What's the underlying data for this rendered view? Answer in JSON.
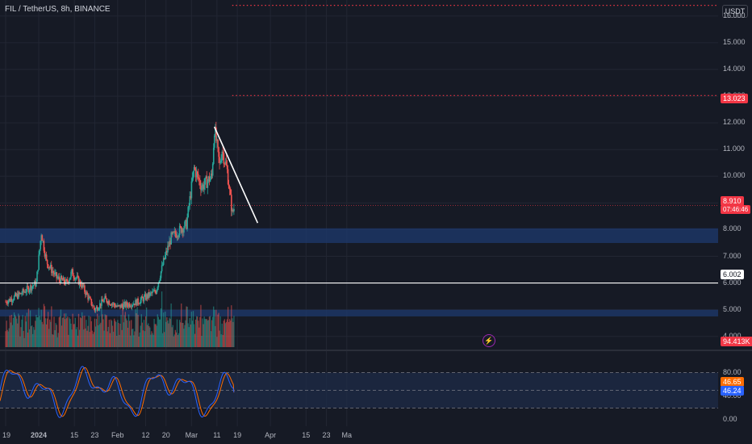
{
  "header": {
    "title": "FIL / TetherUS, 8h, BINANCE",
    "currency_button": "USDT"
  },
  "price_axis": {
    "ticks": [
      "16.000",
      "15.000",
      "14.000",
      "13.000",
      "12.000",
      "11.000",
      "10.000",
      "9.000",
      "8.000",
      "7.000",
      "6.000",
      "5.000",
      "4.000"
    ],
    "badges": {
      "current_price": "8.910",
      "countdown": "07:46:46",
      "level_high": "13.023",
      "level_line": "6.002",
      "volume": "94.413K",
      "stoch_k": "46.65",
      "stoch_d": "46.24"
    }
  },
  "oscillator_axis": {
    "ticks": [
      "80.00",
      "40.00",
      "0.00"
    ]
  },
  "time_axis": {
    "ticks": [
      "19",
      "2024",
      "15",
      "23",
      "Feb",
      "12",
      "20",
      "Mar",
      "11",
      "19",
      "Apr",
      "15",
      "23",
      "Ma"
    ]
  },
  "colors": {
    "background": "#161a25",
    "up": "#26a69a",
    "down": "#ef5350",
    "zone": "#1e3a6e",
    "resistance": "#f23645",
    "stoch_k": "#2962ff",
    "stoch_d": "#ff6d00"
  },
  "chart_data": {
    "type": "candlestick",
    "symbol": "FIL / TetherUS",
    "interval": "8h",
    "exchange": "BINANCE",
    "price_range": [
      3.6,
      16.6
    ],
    "current_price": 8.91,
    "horizontal_levels": [
      {
        "price": 13.023,
        "style": "dotted",
        "color": "#f23645"
      },
      {
        "price": 16.4,
        "style": "dotted",
        "color": "#f23645"
      },
      {
        "price": 6.002,
        "style": "solid",
        "color": "#ffffff"
      }
    ],
    "zones": [
      {
        "from": 7.5,
        "to": 8.05
      },
      {
        "from": 4.75,
        "to": 5.0
      }
    ],
    "trendline": {
      "from_price": 11.85,
      "to_price": 8.25
    },
    "path_anchors": [
      {
        "date": "2023-12-19",
        "price": 5.3
      },
      {
        "date": "2023-12-25",
        "price": 5.6
      },
      {
        "date": "2023-12-31",
        "price": 6.0
      },
      {
        "date": "2024-01-02",
        "price": 7.9
      },
      {
        "date": "2024-01-04",
        "price": 6.8
      },
      {
        "date": "2024-01-08",
        "price": 6.2
      },
      {
        "date": "2024-01-12",
        "price": 6.0
      },
      {
        "date": "2024-01-14",
        "price": 6.4
      },
      {
        "date": "2024-01-18",
        "price": 5.9
      },
      {
        "date": "2024-01-23",
        "price": 5.0
      },
      {
        "date": "2024-01-27",
        "price": 5.4
      },
      {
        "date": "2024-02-01",
        "price": 5.1
      },
      {
        "date": "2024-02-09",
        "price": 5.3
      },
      {
        "date": "2024-02-16",
        "price": 5.7
      },
      {
        "date": "2024-02-19",
        "price": 6.8
      },
      {
        "date": "2024-02-22",
        "price": 7.7
      },
      {
        "date": "2024-02-28",
        "price": 8.2
      },
      {
        "date": "2024-03-02",
        "price": 10.3
      },
      {
        "date": "2024-03-05",
        "price": 9.6
      },
      {
        "date": "2024-03-09",
        "price": 10.0
      },
      {
        "date": "2024-03-10",
        "price": 11.8
      },
      {
        "date": "2024-03-12",
        "price": 10.4
      },
      {
        "date": "2024-03-13",
        "price": 11.0
      },
      {
        "date": "2024-03-15",
        "price": 10.2
      },
      {
        "date": "2024-03-17",
        "price": 8.6
      },
      {
        "date": "2024-03-18",
        "price": 8.91
      }
    ],
    "stochastic": {
      "range": [
        0,
        100
      ],
      "bands": [
        80,
        20
      ],
      "last_k": 46.65,
      "last_d": 46.24
    }
  }
}
